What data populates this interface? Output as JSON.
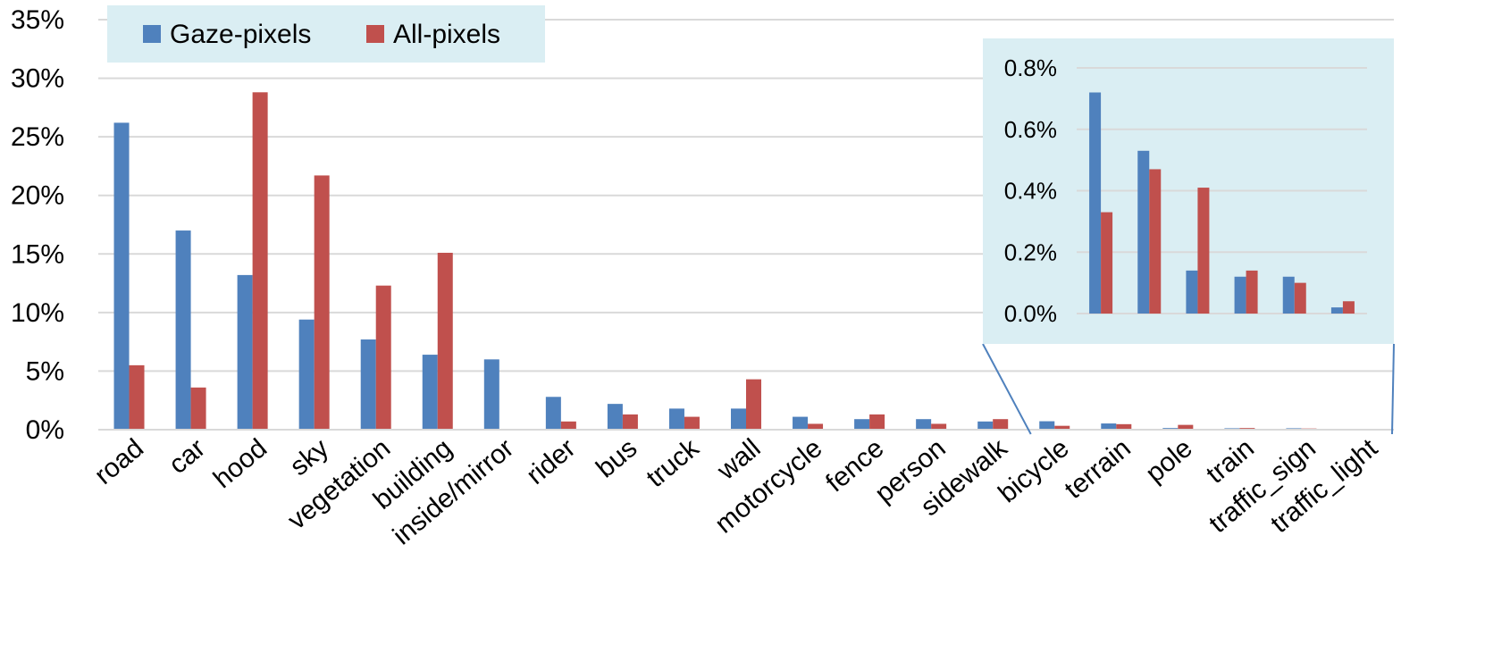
{
  "chart_data": {
    "type": "bar",
    "categories": [
      "road",
      "car",
      "hood",
      "sky",
      "vegetation",
      "building",
      "inside/mirror",
      "rider",
      "bus",
      "truck",
      "wall",
      "motorcycle",
      "fence",
      "person",
      "sidewalk",
      "bicycle",
      "terrain",
      "pole",
      "train",
      "traffic_sign",
      "traffic_light"
    ],
    "series": [
      {
        "name": "Gaze-pixels",
        "color": "#4F81BD",
        "values": [
          26.2,
          17.0,
          13.2,
          9.4,
          7.7,
          6.4,
          6.0,
          2.8,
          2.2,
          1.8,
          1.8,
          1.1,
          0.9,
          0.9,
          0.7,
          0.72,
          0.53,
          0.14,
          0.12,
          0.12,
          0.02
        ]
      },
      {
        "name": "All-pixels",
        "color": "#C0504D",
        "values": [
          5.5,
          3.6,
          28.8,
          21.7,
          12.3,
          15.1,
          0.0,
          0.7,
          1.3,
          1.1,
          4.3,
          0.5,
          1.3,
          0.5,
          0.9,
          0.33,
          0.47,
          0.41,
          0.14,
          0.1,
          0.04
        ]
      }
    ],
    "ylim": [
      0,
      35
    ],
    "yticks": [
      "0%",
      "5%",
      "10%",
      "15%",
      "20%",
      "25%",
      "30%",
      "35%"
    ],
    "grid": true,
    "legend": "top-left",
    "inset": {
      "categories": [
        "bicycle",
        "terrain",
        "pole",
        "train",
        "traffic_sign",
        "traffic_light"
      ],
      "ylim": [
        0,
        0.8
      ],
      "yticks": [
        "0.0%",
        "0.2%",
        "0.4%",
        "0.6%",
        "0.8%"
      ],
      "background": "#DAEEF3"
    },
    "legend_background": "#DAEEF3"
  }
}
